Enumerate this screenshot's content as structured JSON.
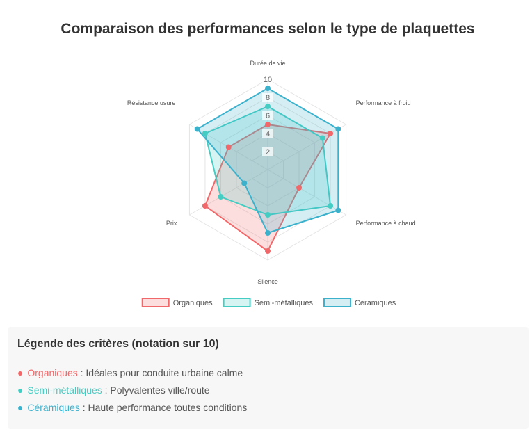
{
  "chart_data": {
    "type": "radar",
    "title": "Comparaison des performances selon le type de plaquettes",
    "axes": [
      "Durée de vie",
      "Performance à froid",
      "Performance à chaud",
      "Silence",
      "Prix",
      "Résistance usure"
    ],
    "rlim": [
      0,
      10
    ],
    "ticks": [
      "2",
      "4",
      "6",
      "8",
      "10"
    ],
    "tick_values": [
      2,
      4,
      6,
      8,
      10
    ],
    "series": [
      {
        "name": "Organiques",
        "color": "#f0686a",
        "fill": "rgba(240,104,106,0.22)",
        "values": [
          5,
          8,
          4,
          9,
          8,
          5
        ]
      },
      {
        "name": "Semi-métalliques",
        "color": "#46cdc3",
        "fill": "rgba(70,205,195,0.22)",
        "values": [
          7,
          7,
          8,
          5,
          6,
          8
        ]
      },
      {
        "name": "Céramiques",
        "color": "#3cb1cc",
        "fill": "rgba(60,177,204,0.22)",
        "values": [
          9,
          9,
          9,
          7,
          3,
          9
        ]
      }
    ],
    "legend_position": "bottom"
  },
  "legend_box": {
    "title": "Légende des critères (notation sur 10)",
    "bullet": "●",
    "items": [
      {
        "name": "Organiques",
        "color": "#f0686a",
        "desc": " : Idéales pour conduite urbaine calme"
      },
      {
        "name": "Semi-métalliques",
        "color": "#46cdc3",
        "desc": " : Polyvalentes ville/route"
      },
      {
        "name": "Céramiques",
        "color": "#3cb1cc",
        "desc": " : Haute performance toutes conditions"
      }
    ]
  }
}
